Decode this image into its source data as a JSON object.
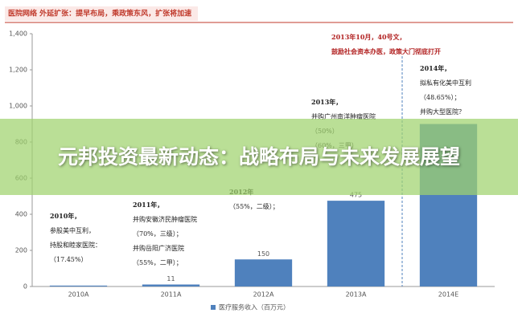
{
  "chart_data": {
    "type": "bar",
    "title": "医院网络 外延扩张：提早布局，乘政策东风，扩张将加速",
    "categories": [
      "2010A",
      "2011A",
      "2012A",
      "2013A",
      "2014E"
    ],
    "series": [
      {
        "name": "医疗服务收入（百万元）",
        "color": "#4f81bd",
        "values": [
          5,
          11,
          150,
          475,
          900
        ],
        "value_labels": [
          null,
          "11",
          "150",
          "475",
          null
        ]
      }
    ],
    "ylim": [
      0,
      1400
    ],
    "yticks": [
      0,
      200,
      400,
      600,
      800,
      {
        "value": 1000,
        "label": "1,000"
      },
      {
        "value": 1200,
        "label": "1,200"
      },
      {
        "value": 1400,
        "label": "1,400"
      }
    ],
    "annotations": [
      [
        "2010年，",
        "参股美中互利，",
        "持股和睦家医院：",
        "（17.45%）"
      ],
      [
        "2011年，",
        "并购安徽济民肿瘤医院",
        "（70%，三级）；",
        "并购岳阳广济医院",
        "（55%，二甲）；"
      ],
      [
        "2012年",
        "（55%，二级）；"
      ],
      [
        "2013年，",
        "并购广州南洋肿瘤医院",
        "（50%）",
        "（60%，三甲）"
      ],
      [
        "2013年10月，40号文，",
        "鼓励社会资本办医，政策大门彻底打开"
      ],
      [
        "2014年，",
        "拟私有化美中互利",
        "（48.65%）；",
        "并购大型医院？"
      ]
    ],
    "banner": "元邦投资最新动态：战略布局与未来发展展望"
  }
}
